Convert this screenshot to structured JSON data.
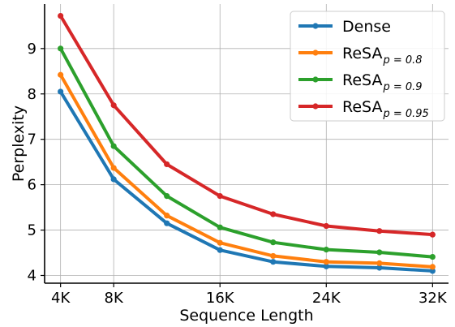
{
  "chart_data": {
    "type": "line",
    "xlabel": "Sequence Length",
    "ylabel": "Perplexity",
    "x": [
      4,
      8,
      12,
      16,
      20,
      24,
      28,
      32
    ],
    "xticks": [
      4,
      8,
      16,
      24,
      32
    ],
    "xtick_labels": [
      "4K",
      "8K",
      "16K",
      "24K",
      "32K"
    ],
    "xlim": [
      2.8,
      33.2
    ],
    "yticks": [
      4,
      5,
      6,
      7,
      8,
      9
    ],
    "ytick_labels": [
      "4",
      "5",
      "6",
      "7",
      "8",
      "9"
    ],
    "ylim": [
      3.83,
      9.98
    ],
    "grid": true,
    "legend_position": "top-right",
    "series": [
      {
        "name": "Dense",
        "legend_sub": "",
        "color": "#1f77b4",
        "values": [
          8.05,
          6.12,
          5.15,
          4.56,
          4.3,
          4.2,
          4.17,
          4.1
        ]
      },
      {
        "name": "ReSA",
        "legend_sub": "p = 0.8",
        "color": "#ff7f0e",
        "values": [
          8.42,
          6.37,
          5.32,
          4.72,
          4.43,
          4.3,
          4.27,
          4.19
        ]
      },
      {
        "name": "ReSA",
        "legend_sub": "p = 0.9",
        "color": "#2ca02c",
        "values": [
          9.0,
          6.85,
          5.75,
          5.06,
          4.73,
          4.57,
          4.51,
          4.41
        ]
      },
      {
        "name": "ReSA",
        "legend_sub": "p = 0.95",
        "color": "#d62728",
        "values": [
          9.72,
          7.75,
          6.45,
          5.75,
          5.35,
          5.09,
          4.98,
          4.9
        ]
      }
    ]
  }
}
